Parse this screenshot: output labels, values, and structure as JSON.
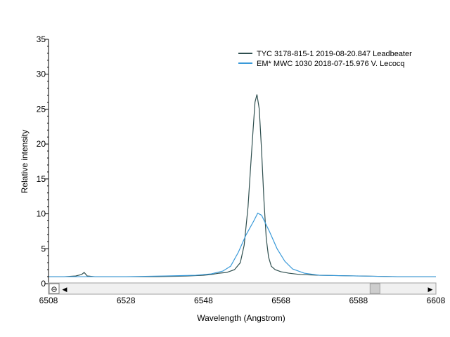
{
  "chart_data": {
    "type": "line",
    "title": "",
    "xlabel": "Wavelength (Angstrom)",
    "ylabel": "Relative intensity",
    "xlim": [
      6508,
      6608
    ],
    "ylim": [
      0,
      35
    ],
    "x_ticks": [
      "6508",
      "6528",
      "6548",
      "6568",
      "6588",
      "6608"
    ],
    "y_ticks": [
      "0",
      "5",
      "10",
      "15",
      "20",
      "25",
      "30",
      "35"
    ],
    "grid": false,
    "legend_position": "top-right",
    "series": [
      {
        "name": "TYC 3178-815-1  2019-08-20.847  Leadbeater",
        "color": "#2f4f4f",
        "x": [
          6508,
          6512,
          6515,
          6516.5,
          6517.2,
          6518,
          6520,
          6528,
          6536,
          6544,
          6548,
          6550,
          6552,
          6554,
          6556,
          6557.5,
          6558.5,
          6559.5,
          6560.2,
          6560.8,
          6561.3,
          6561.8,
          6562.4,
          6563,
          6563.6,
          6564.2,
          6564.8,
          6565.5,
          6566.5,
          6568,
          6570,
          6573,
          6578,
          6588,
          6598,
          6608
        ],
        "y": [
          1.0,
          1.0,
          1.1,
          1.3,
          1.6,
          1.1,
          1.0,
          1.0,
          1.0,
          1.1,
          1.2,
          1.3,
          1.5,
          1.6,
          2.0,
          3.0,
          5.5,
          11.0,
          17.0,
          22.0,
          26.0,
          27.1,
          25.0,
          19.0,
          12.0,
          6.5,
          3.8,
          2.5,
          2.0,
          1.7,
          1.5,
          1.3,
          1.2,
          1.1,
          1.0,
          1.0
        ]
      },
      {
        "name": "EM* MWC 1030  2018-07-15.976  V. Lecocq",
        "color": "#3a9ad9",
        "x": [
          6508,
          6518,
          6528,
          6538,
          6546,
          6550,
          6553,
          6555,
          6557,
          6559,
          6561,
          6562,
          6563,
          6565,
          6567,
          6569,
          6571,
          6574,
          6578,
          6588,
          6598,
          6608
        ],
        "y": [
          1.0,
          1.0,
          1.0,
          1.1,
          1.2,
          1.4,
          1.8,
          2.5,
          4.5,
          7.0,
          9.0,
          10.1,
          9.8,
          7.5,
          5.0,
          3.2,
          2.1,
          1.5,
          1.2,
          1.1,
          1.0,
          1.0
        ]
      }
    ]
  },
  "scrollbar": {
    "zoom_out_symbol": "⊖",
    "left_arrow": "◀",
    "right_arrow": "▶",
    "thumb_position": 0.87
  }
}
